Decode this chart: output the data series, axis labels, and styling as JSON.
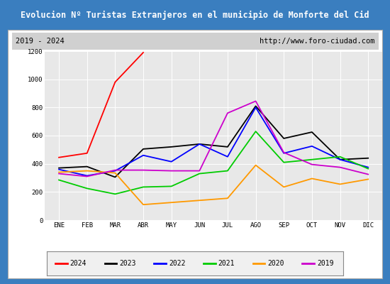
{
  "title": "Evolucion Nº Turistas Extranjeros en el municipio de Monforte del Cid",
  "subtitle_left": "2019 - 2024",
  "subtitle_right": "http://www.foro-ciudad.com",
  "months": [
    "ENE",
    "FEB",
    "MAR",
    "ABR",
    "MAY",
    "JUN",
    "JUL",
    "AGO",
    "SEP",
    "OCT",
    "NOV",
    "DIC"
  ],
  "series": {
    "2024": [
      445,
      475,
      980,
      1190,
      null,
      null,
      null,
      null,
      null,
      null,
      null,
      null
    ],
    "2023": [
      370,
      380,
      305,
      505,
      520,
      540,
      520,
      810,
      580,
      625,
      430,
      440
    ],
    "2022": [
      360,
      315,
      350,
      460,
      415,
      540,
      450,
      800,
      475,
      525,
      430,
      375
    ],
    "2021": [
      285,
      225,
      185,
      235,
      240,
      330,
      350,
      630,
      410,
      430,
      450,
      365
    ],
    "2020": [
      340,
      350,
      335,
      110,
      125,
      140,
      155,
      390,
      235,
      295,
      255,
      290
    ],
    "2019": [
      330,
      310,
      355,
      355,
      350,
      350,
      760,
      845,
      480,
      395,
      375,
      325
    ]
  },
  "colors": {
    "2024": "#ff0000",
    "2023": "#000000",
    "2022": "#0000ff",
    "2021": "#00cc00",
    "2020": "#ff9900",
    "2019": "#cc00cc"
  },
  "ylim": [
    0,
    1200
  ],
  "title_bg": "#3a7ebf",
  "title_color": "#ffffff",
  "plot_bg": "#e8e8e8",
  "grid_color": "#ffffff",
  "subtitle_bg": "#d0d0d0",
  "outer_bg": "#3a7ebf"
}
